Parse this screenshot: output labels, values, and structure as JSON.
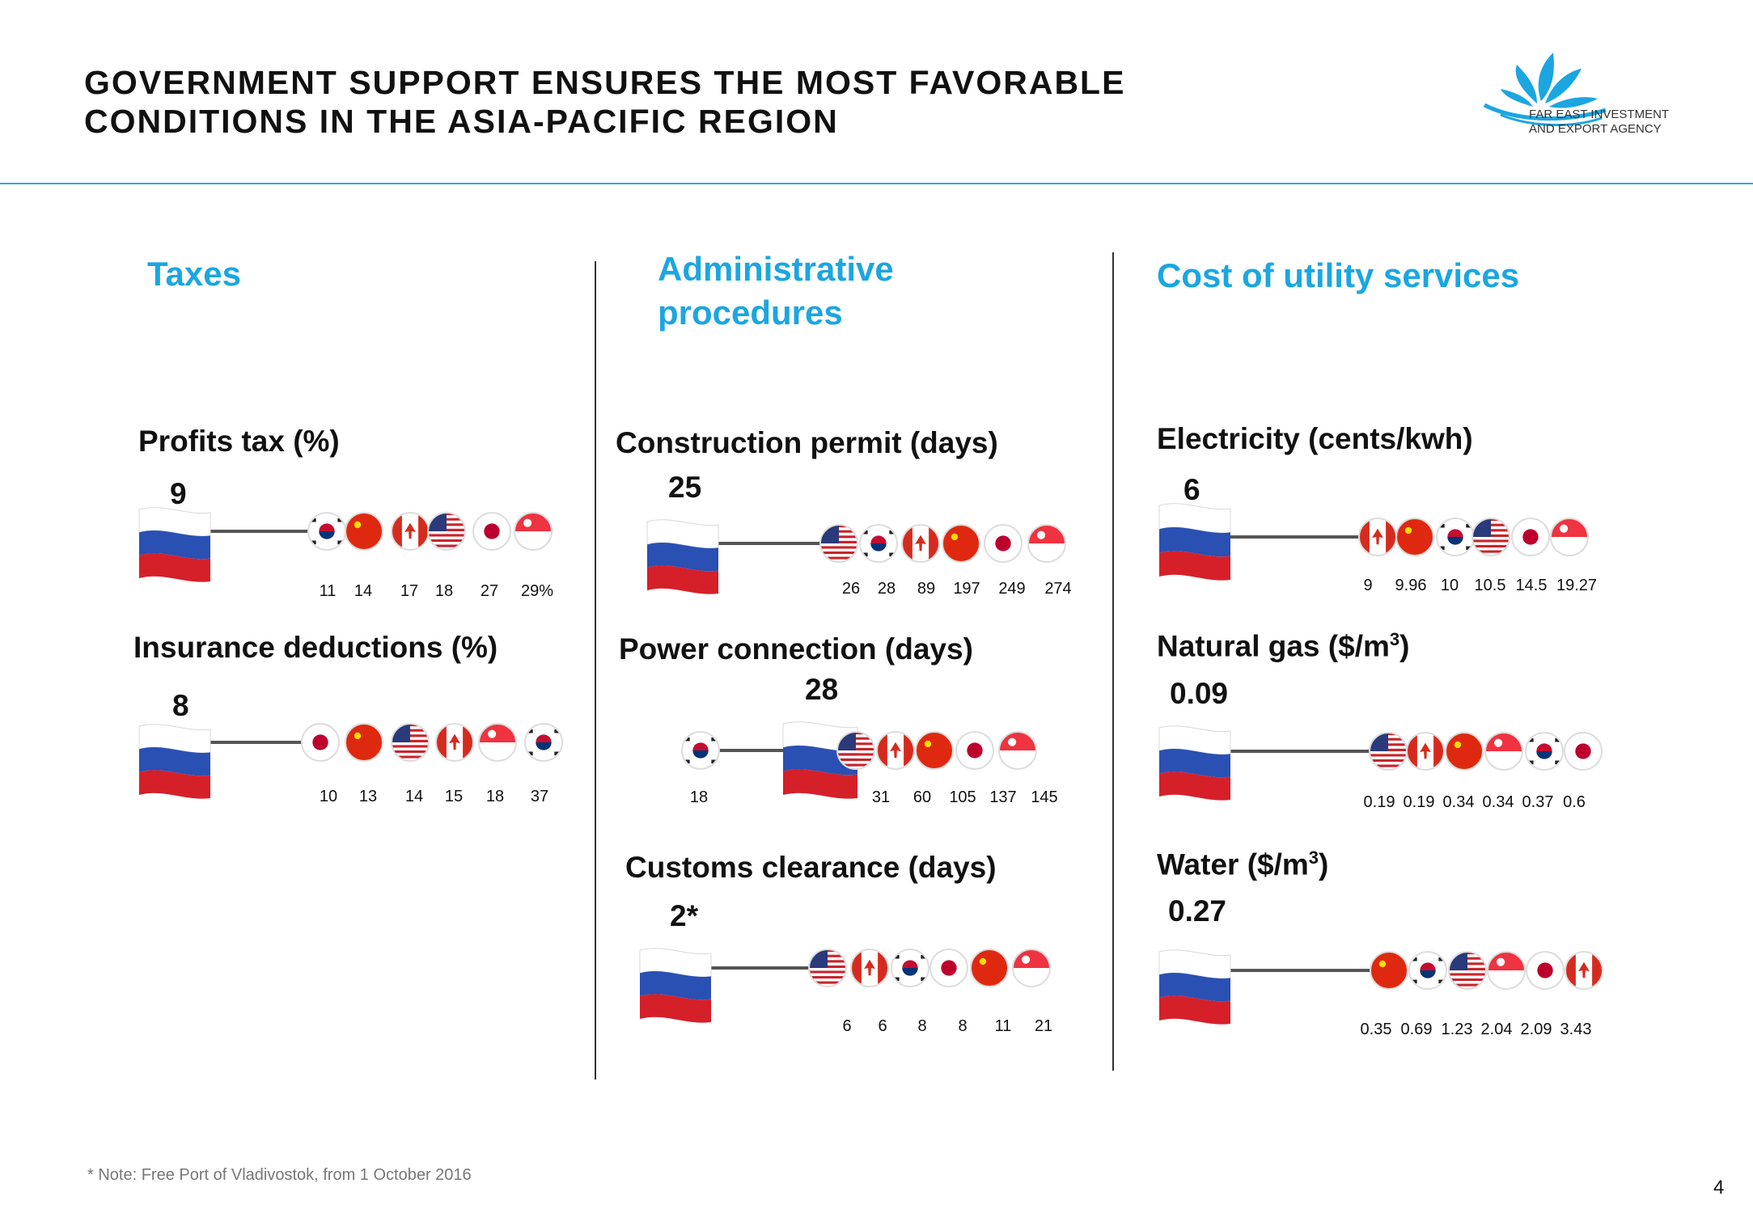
{
  "header": {
    "title_line1": "GOVERNMENT SUPPORT ENSURES THE MOST FAVORABLE",
    "title_line2": "CONDITIONS IN THE ASIA-PACIFIC REGION",
    "logo_line1": "FAR EAST INVESTMENT",
    "logo_line2": "AND EXPORT AGENCY"
  },
  "columns": {
    "taxes": "Taxes",
    "admin_line1": "Administrative",
    "admin_line2": "procedures",
    "utilities": "Cost of utility services"
  },
  "footnote": "* Note: Free Port of Vladivostok, from 1 October 2016",
  "page_number": "4",
  "colors": {
    "accent": "#1ba6e1",
    "rule": "#29aae1",
    "axis_line": "#555555"
  },
  "chart_data": [
    {
      "type": "scatter",
      "title": "Profits tax (%)",
      "russia_label": "9",
      "value_labels": [
        "11",
        "14",
        "17",
        "18",
        "27",
        "29%"
      ],
      "countries": [
        "south-korea",
        "china",
        "canada",
        "usa",
        "japan",
        "singapore"
      ]
    },
    {
      "type": "scatter",
      "title": "Insurance deductions (%)",
      "russia_label": "8",
      "value_labels": [
        "10",
        "13",
        "14",
        "15",
        "18",
        "37"
      ],
      "countries": [
        "japan",
        "china",
        "usa",
        "canada",
        "singapore",
        "south-korea"
      ]
    },
    {
      "type": "scatter",
      "title": "Construction permit (days)",
      "russia_label": "25",
      "value_labels": [
        "26",
        "28",
        "89",
        "197",
        "249",
        "274"
      ],
      "countries": [
        "usa",
        "south-korea",
        "canada",
        "china",
        "japan",
        "singapore"
      ]
    },
    {
      "type": "scatter",
      "title": "Power connection (days)",
      "russia_label": "28",
      "value_labels": [
        "18",
        "31",
        "60",
        "105",
        "137",
        "145"
      ],
      "countries": [
        "south-korea",
        "usa",
        "canada",
        "china",
        "japan",
        "singapore"
      ]
    },
    {
      "type": "scatter",
      "title": "Customs clearance (days)",
      "russia_label": "2*",
      "value_labels": [
        "6",
        "6",
        "8",
        "8",
        "11",
        "21"
      ],
      "countries": [
        "usa",
        "canada",
        "south-korea",
        "japan",
        "china",
        "singapore"
      ]
    },
    {
      "type": "scatter",
      "title": "Electricity (cents/kwh)",
      "russia_label": "6",
      "value_labels": [
        "9",
        "9.96",
        "10",
        "10.5",
        "14.5",
        "19.27"
      ],
      "countries": [
        "canada",
        "china",
        "south-korea",
        "usa",
        "japan",
        "singapore"
      ]
    },
    {
      "type": "scatter",
      "title_main": "Natural gas ($/m",
      "title_sup": "3",
      "title_close": ")",
      "russia_label": "0.09",
      "value_labels": [
        "0.19",
        "0.19",
        "0.34",
        "0.34",
        "0.37",
        "0.6"
      ],
      "countries": [
        "usa",
        "canada",
        "china",
        "singapore",
        "south-korea",
        "japan"
      ]
    },
    {
      "type": "scatter",
      "title_main": "Water ($/m",
      "title_sup": "3",
      "title_close": ")",
      "russia_label": "0.27",
      "value_labels": [
        "0.35",
        "0.69",
        "1.23",
        "2.04",
        "2.09",
        "3.43"
      ],
      "countries": [
        "china",
        "south-korea",
        "usa",
        "singapore",
        "japan",
        "canada"
      ]
    }
  ]
}
